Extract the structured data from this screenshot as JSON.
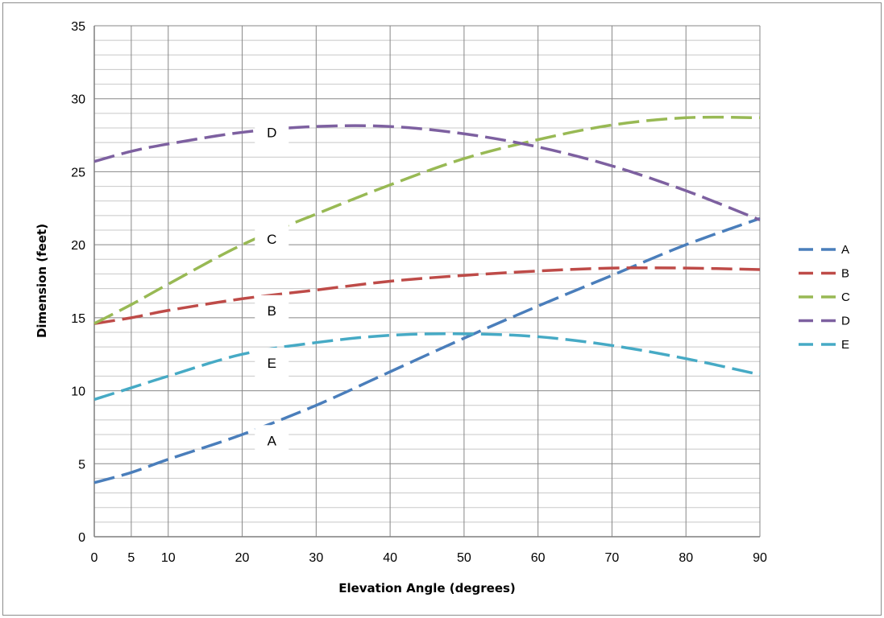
{
  "chart_data": {
    "type": "line",
    "title": "",
    "xlabel": "Elevation Angle (degrees)",
    "ylabel": "Dimension (feet)",
    "xlim": [
      0,
      90
    ],
    "ylim": [
      0,
      35
    ],
    "x_ticks": [
      "0",
      "5",
      "10",
      "20",
      "30",
      "40",
      "50",
      "60",
      "70",
      "80",
      "90"
    ],
    "x_tick_values": [
      0,
      5,
      10,
      20,
      30,
      40,
      50,
      60,
      70,
      80,
      90
    ],
    "y_ticks": [
      "0",
      "5",
      "10",
      "15",
      "20",
      "25",
      "30",
      "35"
    ],
    "y_tick_values": [
      0,
      5,
      10,
      15,
      20,
      25,
      30,
      35
    ],
    "grid": true,
    "legend_position": "right",
    "x": [
      0,
      5,
      10,
      20,
      30,
      40,
      50,
      60,
      70,
      80,
      90
    ],
    "series": [
      {
        "name": "A",
        "color": "#4a7ebb",
        "values": [
          3.7,
          4.4,
          5.3,
          7.0,
          9.0,
          11.3,
          13.6,
          15.8,
          17.9,
          20.0,
          21.8
        ]
      },
      {
        "name": "B",
        "color": "#be4b48",
        "values": [
          14.6,
          15.0,
          15.5,
          16.3,
          16.9,
          17.5,
          17.9,
          18.2,
          18.4,
          18.4,
          18.3
        ]
      },
      {
        "name": "C",
        "color": "#98b954",
        "values": [
          14.6,
          15.9,
          17.3,
          20.0,
          22.1,
          24.1,
          25.9,
          27.2,
          28.2,
          28.7,
          28.7
        ]
      },
      {
        "name": "D",
        "color": "#7d60a0",
        "values": [
          25.7,
          26.4,
          26.9,
          27.7,
          28.1,
          28.1,
          27.6,
          26.7,
          25.4,
          23.7,
          21.7
        ]
      },
      {
        "name": "E",
        "color": "#46aac5",
        "values": [
          9.4,
          10.2,
          11.0,
          12.5,
          13.3,
          13.8,
          13.9,
          13.7,
          13.1,
          12.2,
          11.1
        ]
      }
    ],
    "annotations": [
      {
        "text": "A",
        "series": "A",
        "x": 24,
        "y": 6.6
      },
      {
        "text": "B",
        "series": "B",
        "x": 24,
        "y": 15.5
      },
      {
        "text": "C",
        "series": "C",
        "x": 24,
        "y": 20.4
      },
      {
        "text": "D",
        "series": "D",
        "x": 24,
        "y": 27.7
      },
      {
        "text": "E",
        "series": "E",
        "x": 24,
        "y": 11.9
      }
    ]
  }
}
